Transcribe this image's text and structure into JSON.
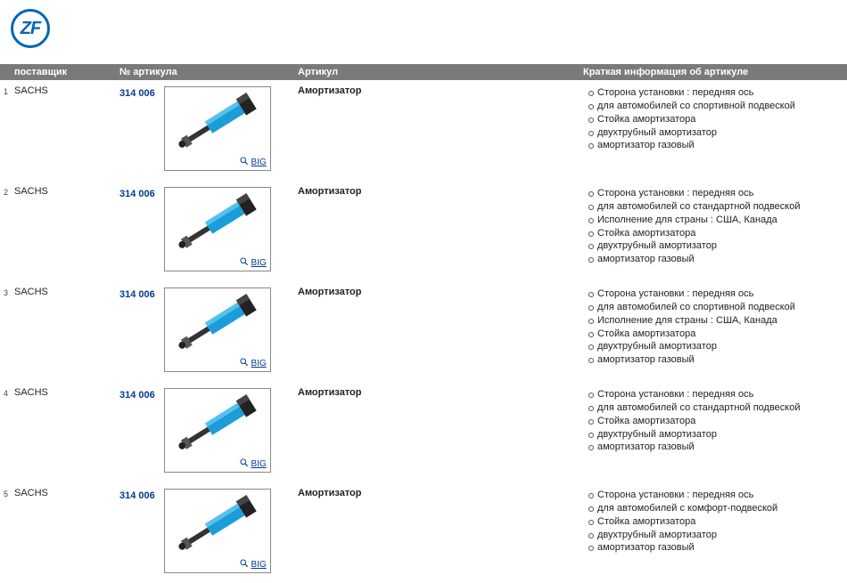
{
  "logo_text": "ZF",
  "brand_color": "#0066b3",
  "link_color": "#003a8c",
  "header_bg": "#7a7a7a",
  "columns": {
    "supplier": "поставщик",
    "article_no": "№ артикула",
    "article": "Артикул",
    "info": "Краткая информация об артикуле"
  },
  "big_label": "BIG",
  "rows": [
    {
      "idx": "1",
      "supplier": "SACHS",
      "article_no": "314 006",
      "article_name": "Амортизатор",
      "info": [
        "Сторона установки : передняя ось",
        "для автомобилей со спортивной подвеской",
        "Стойка амортизатора",
        "двухтрубный амортизатор",
        "амортизатор газовый"
      ]
    },
    {
      "idx": "2",
      "supplier": "SACHS",
      "article_no": "314 006",
      "article_name": "Амортизатор",
      "info": [
        "Сторона установки : передняя ось",
        "для автомобилей со стандартной подвеской",
        "Исполнение для страны : США, Канада",
        "Стойка амортизатора",
        "двухтрубный амортизатор",
        "амортизатор газовый"
      ]
    },
    {
      "idx": "3",
      "supplier": "SACHS",
      "article_no": "314 006",
      "article_name": "Амортизатор",
      "info": [
        "Сторона установки : передняя ось",
        "для автомобилей со спортивной подвеской",
        "Исполнение для страны : США, Канада",
        "Стойка амортизатора",
        "двухтрубный амортизатор",
        "амортизатор газовый"
      ]
    },
    {
      "idx": "4",
      "supplier": "SACHS",
      "article_no": "314 006",
      "article_name": "Амортизатор",
      "info": [
        "Сторона установки : передняя ось",
        "для автомобилей со стандартной подвеской",
        "Стойка амортизатора",
        "двухтрубный амортизатор",
        "амортизатор газовый"
      ]
    },
    {
      "idx": "5",
      "supplier": "SACHS",
      "article_no": "314 006",
      "article_name": "Амортизатор",
      "info": [
        "Сторона установки : передняя ось",
        "для автомобилей с комфорт-подвеской",
        "Стойка амортизатора",
        "двухтрубный амортизатор",
        "амортизатор газовый"
      ]
    }
  ]
}
